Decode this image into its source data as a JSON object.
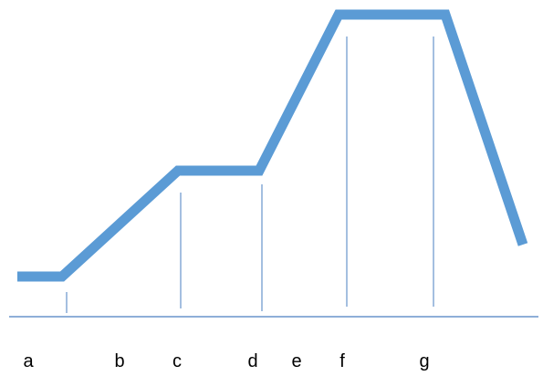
{
  "colors": {
    "curve": "#5b9bd5",
    "axis": "#4a7fc1",
    "marker": "#4a7fc1",
    "label": "#000000"
  },
  "labels": {
    "a": "a",
    "b": "b",
    "c": "c",
    "d": "d",
    "e": "e",
    "f": "f",
    "g": "g"
  }
}
